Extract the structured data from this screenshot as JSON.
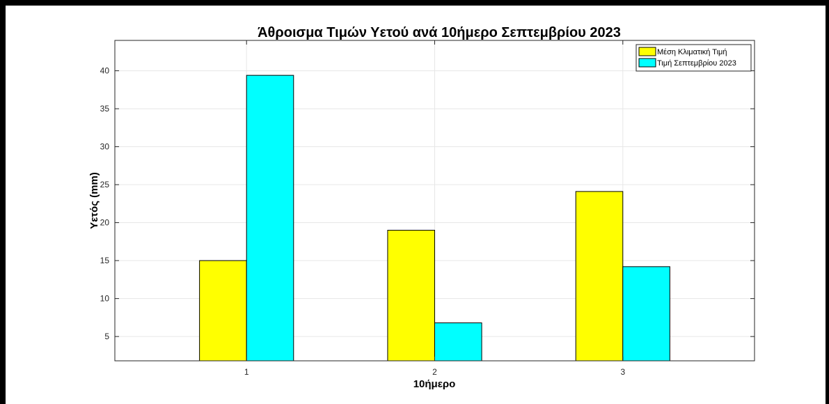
{
  "chart_data": {
    "type": "bar",
    "title": "Άθροισμα Τιμών Υετού ανά 10ήμερο Σεπτεμβρίου 2023",
    "xlabel": "10ήμερο",
    "ylabel": "Υετός (mm)",
    "categories": [
      "1",
      "2",
      "3"
    ],
    "xlim": [
      0.3,
      3.7
    ],
    "ylim": [
      1.8,
      44
    ],
    "yticks": [
      5,
      10,
      15,
      20,
      25,
      30,
      35,
      40
    ],
    "grid": true,
    "legend_position": "top-right",
    "series": [
      {
        "name": "Μέση Κλιματική Τιμή",
        "color": "#ffff00",
        "values": [
          15.0,
          19.0,
          24.1
        ]
      },
      {
        "name": "Τιμή Σεπτεμβρίου 2023",
        "color": "#00ffff",
        "values": [
          39.4,
          6.8,
          14.2
        ]
      }
    ]
  }
}
